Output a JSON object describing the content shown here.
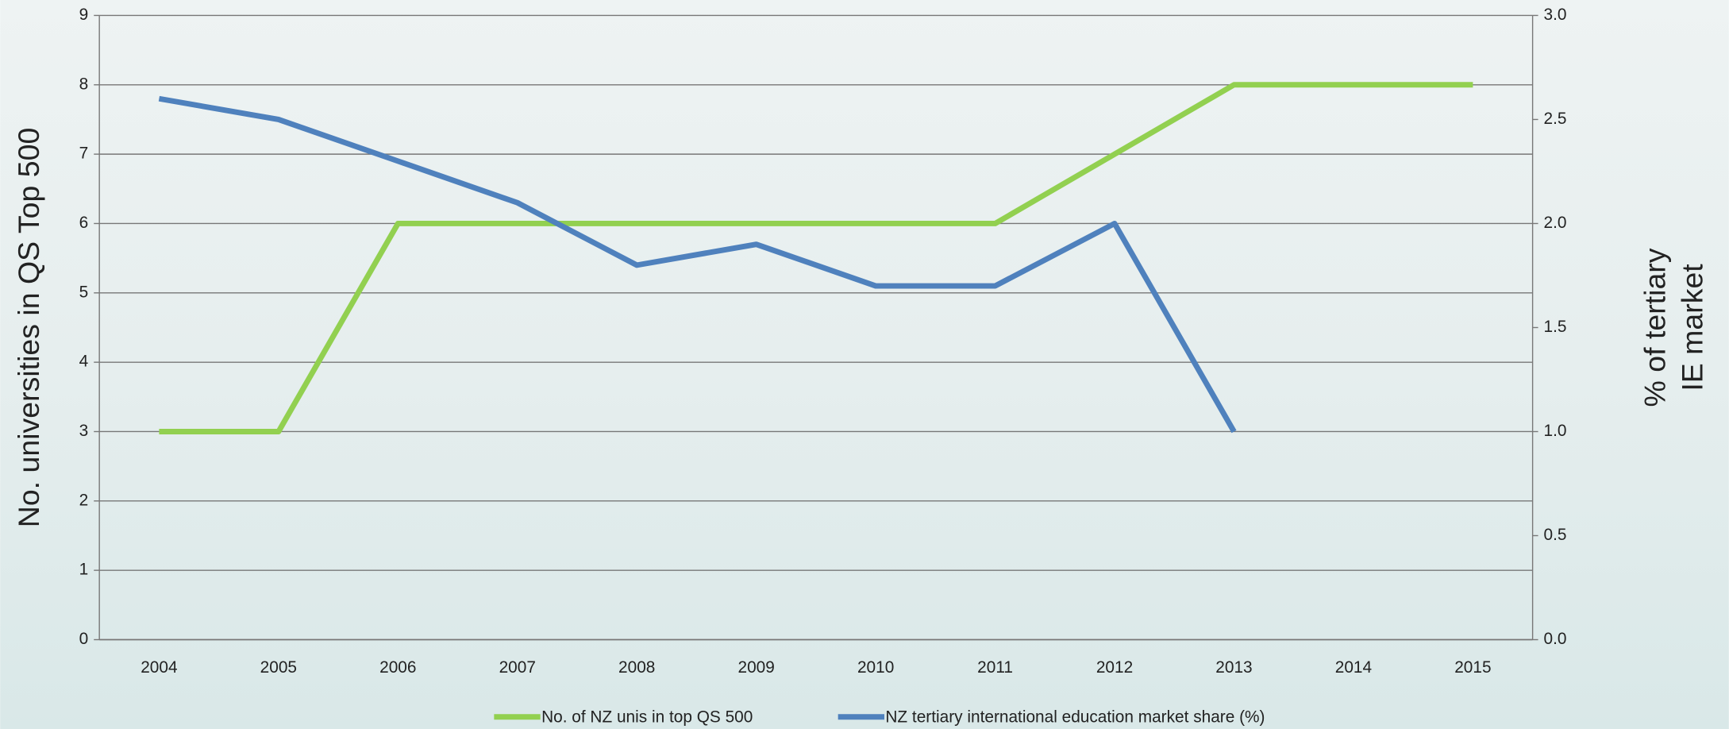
{
  "chart_data": {
    "type": "line",
    "categories": [
      "2004",
      "2005",
      "2006",
      "2007",
      "2008",
      "2009",
      "2010",
      "2011",
      "2012",
      "2013",
      "2014",
      "2015"
    ],
    "series": [
      {
        "name": "No. of NZ unis in top QS 500",
        "color": "#92d050",
        "values": [
          3,
          3,
          6,
          6,
          6,
          6,
          6,
          6,
          7,
          8,
          8,
          8
        ]
      },
      {
        "name": "NZ tertiary international education market share (%)",
        "color": "#4f81bd",
        "axis": "y2",
        "values": [
          2.6,
          2.5,
          2.3,
          2.1,
          1.8,
          1.9,
          1.7,
          1.7,
          2.0,
          1.0,
          null,
          null
        ]
      }
    ],
    "ylabel": "No. universities in QS Top 500",
    "y2label": [
      "% of tertiary",
      "IE market"
    ],
    "ylim": [
      0,
      9
    ],
    "yticks": [
      0,
      1,
      2,
      3,
      4,
      5,
      6,
      7,
      8,
      9
    ],
    "y2lim": [
      0,
      3
    ],
    "y2ticks": [
      {
        "value": 0,
        "label": "0.0"
      },
      0.5,
      {
        "value": 1,
        "label": "1.0"
      },
      1.5,
      {
        "value": 2,
        "label": "2.0"
      },
      2.5,
      {
        "value": 3,
        "label": "3.0"
      }
    ],
    "grid": true,
    "legend": "bottom"
  }
}
